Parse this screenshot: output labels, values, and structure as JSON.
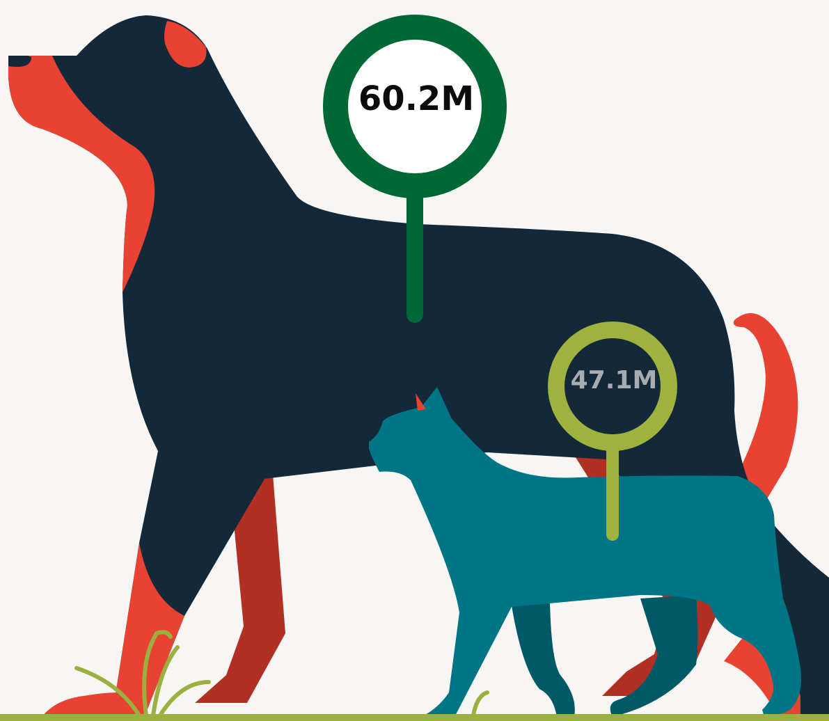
{
  "dog": {
    "label": "60.2M"
  },
  "cat": {
    "label": "47.1M"
  }
}
